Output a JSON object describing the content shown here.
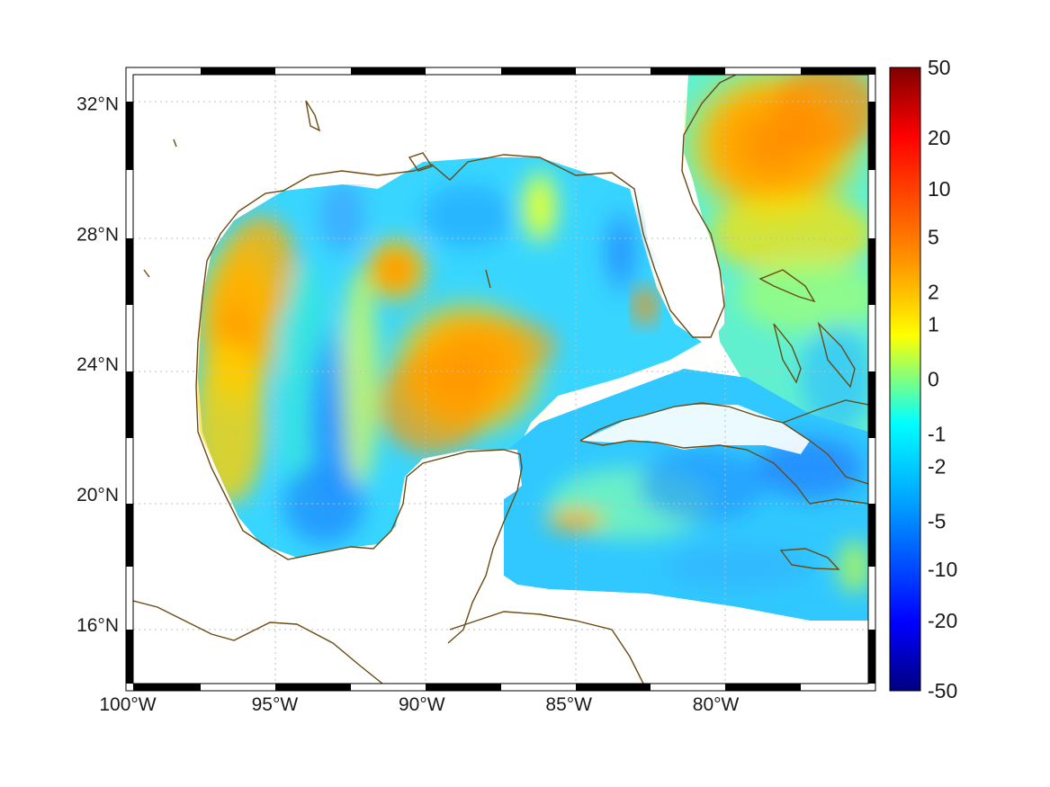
{
  "map": {
    "x_axis": {
      "tick_labels": [
        "100°W",
        "95°W",
        "90°W",
        "85°W",
        "80°W"
      ],
      "lon_values": [
        -100,
        -95,
        -90,
        -85,
        -80
      ],
      "lon_range": [
        -100,
        -75
      ]
    },
    "y_axis": {
      "tick_labels": [
        "32°N",
        "28°N",
        "24°N",
        "20°N",
        "16°N"
      ],
      "lat_values": [
        32,
        28,
        24,
        20,
        16
      ],
      "lat_range": [
        14.2,
        32.9
      ]
    },
    "grid": true,
    "colormap": "jet",
    "coastline_color": "#6b4a12",
    "frame_border": "black-white-alternating"
  },
  "colorbar": {
    "position": "right",
    "tick_labels": [
      "50",
      "20",
      "10",
      "5",
      "2",
      "1",
      "0",
      "-1",
      "-2",
      "-5",
      "-10",
      "-20",
      "-50"
    ],
    "tick_values": [
      50,
      20,
      10,
      5,
      2,
      1,
      0,
      -1,
      -2,
      -5,
      -10,
      -20,
      -50
    ],
    "colors": [
      "#800000",
      "#ff0000",
      "#ff8000",
      "#ffff00",
      "#80ff80",
      "#00ffff",
      "#0080ff",
      "#0000ff",
      "#000080"
    ]
  }
}
